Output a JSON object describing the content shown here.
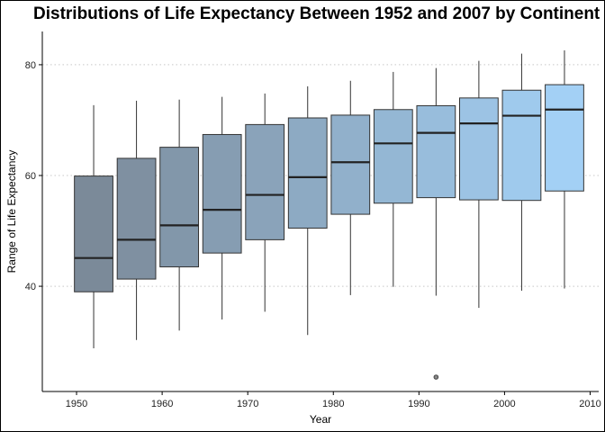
{
  "chart_data": {
    "type": "boxplot",
    "title": "Distributions of Life Expectancy Between 1952 and 2007 by Continent",
    "xlabel": "Year",
    "ylabel": "Range of Life Expectancy",
    "xlim": [
      1946,
      2011
    ],
    "ylim": [
      21,
      86
    ],
    "x_ticks": [
      1950,
      1960,
      1970,
      1980,
      1990,
      2000,
      2010
    ],
    "y_ticks": [
      40,
      60,
      80
    ],
    "grid": "horizontal dotted at y ticks",
    "box_colors": {
      "first": "#7b8a99",
      "last": "#a3d0f5"
    },
    "boxes": [
      {
        "year": 1952,
        "min": 28.8,
        "q1": 39.0,
        "median": 45.1,
        "q3": 59.9,
        "max": 72.7,
        "outliers": []
      },
      {
        "year": 1957,
        "min": 30.3,
        "q1": 41.3,
        "median": 48.4,
        "q3": 63.1,
        "max": 73.5,
        "outliers": []
      },
      {
        "year": 1962,
        "min": 32.0,
        "q1": 43.5,
        "median": 51.0,
        "q3": 65.1,
        "max": 73.7,
        "outliers": []
      },
      {
        "year": 1967,
        "min": 34.0,
        "q1": 46.0,
        "median": 53.8,
        "q3": 67.4,
        "max": 74.2,
        "outliers": []
      },
      {
        "year": 1972,
        "min": 35.4,
        "q1": 48.4,
        "median": 56.5,
        "q3": 69.2,
        "max": 74.8,
        "outliers": []
      },
      {
        "year": 1977,
        "min": 31.2,
        "q1": 50.5,
        "median": 59.7,
        "q3": 70.4,
        "max": 76.1,
        "outliers": []
      },
      {
        "year": 1982,
        "min": 38.4,
        "q1": 53.0,
        "median": 62.4,
        "q3": 70.9,
        "max": 77.1,
        "outliers": []
      },
      {
        "year": 1987,
        "min": 39.9,
        "q1": 55.0,
        "median": 65.8,
        "q3": 71.9,
        "max": 78.7,
        "outliers": []
      },
      {
        "year": 1992,
        "min": 38.3,
        "q1": 56.0,
        "median": 67.7,
        "q3": 72.6,
        "max": 79.4,
        "outliers": [
          23.6
        ]
      },
      {
        "year": 1997,
        "min": 36.1,
        "q1": 55.6,
        "median": 69.4,
        "q3": 74.0,
        "max": 80.7,
        "outliers": []
      },
      {
        "year": 2002,
        "min": 39.2,
        "q1": 55.5,
        "median": 70.8,
        "q3": 75.4,
        "max": 82.0,
        "outliers": []
      },
      {
        "year": 2007,
        "min": 39.6,
        "q1": 57.2,
        "median": 71.9,
        "q3": 76.4,
        "max": 82.6,
        "outliers": []
      }
    ]
  }
}
